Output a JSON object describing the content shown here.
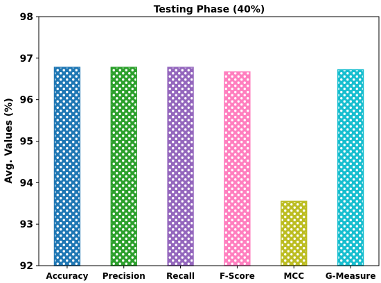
{
  "chart_data": {
    "type": "bar",
    "title": "Testing Phase (40%)",
    "xlabel": "",
    "ylabel": "Avg. Values (%)",
    "categories": [
      "Accuracy",
      "Precision",
      "Recall",
      "F-Score",
      "MCC",
      "G-Measure"
    ],
    "values": [
      96.78,
      96.78,
      96.78,
      96.67,
      93.55,
      96.72
    ],
    "colors": [
      "#1f77b4",
      "#2ca02c",
      "#9467bd",
      "#ff7fbf",
      "#bcbd22",
      "#17becf"
    ],
    "ylim": [
      92,
      98
    ],
    "yticks": [
      "92",
      "93",
      "94",
      "95",
      "96",
      "97",
      "98"
    ],
    "grid": false,
    "bar_pattern": "circles"
  }
}
